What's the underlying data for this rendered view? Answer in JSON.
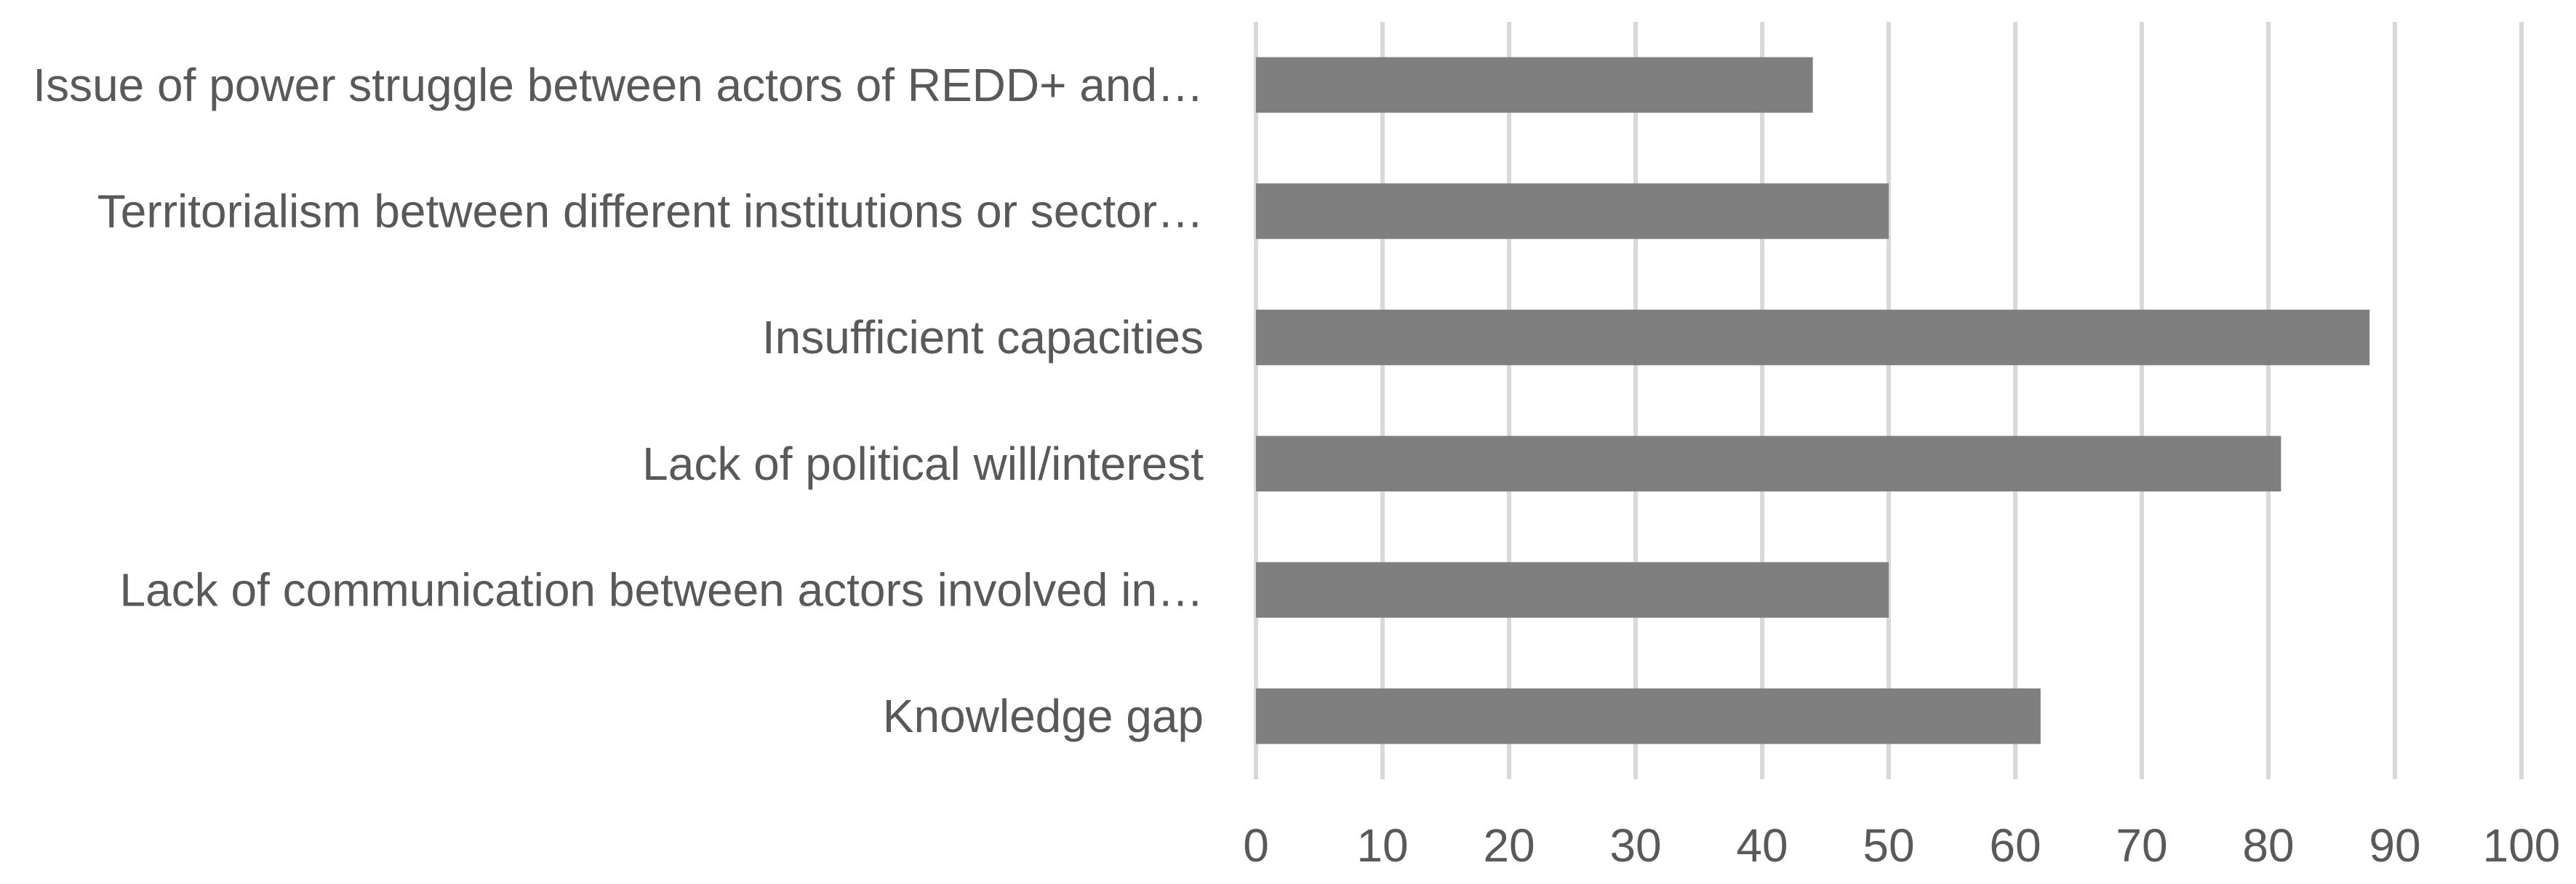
{
  "chart_data": {
    "type": "bar",
    "orientation": "horizontal",
    "categories": [
      "Issue of power struggle between actors of REDD+ and…",
      "Territorialism between different institutions or sector…",
      "Insufficient capacities",
      "Lack of political will/interest",
      "Lack of communication between actors involved in…",
      "Knowledge gap"
    ],
    "values": [
      44,
      50,
      88,
      81,
      50,
      62
    ],
    "x_ticks": [
      "0",
      "10",
      "20",
      "30",
      "40",
      "50",
      "60",
      "70",
      "80",
      "90",
      "100"
    ],
    "xlim": [
      0,
      100
    ],
    "grid": true,
    "legend": "none",
    "title": "",
    "xlabel": "",
    "ylabel": "",
    "colors": {
      "bar": "#7f7f7f",
      "grid": "#d9d9d9",
      "text": "#595959"
    }
  }
}
